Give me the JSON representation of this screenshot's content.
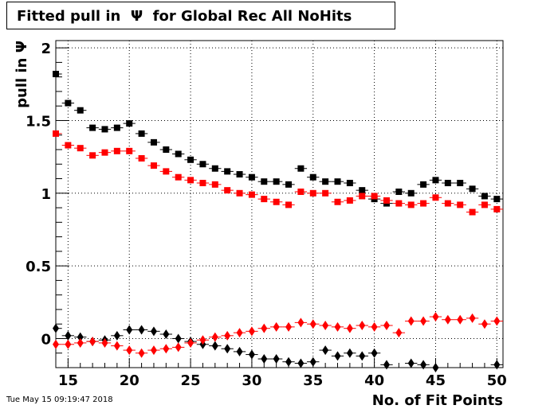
{
  "title": "Fitted pull in  Ψ  for Global Rec All NoHits",
  "footer": "Tue May 15 09:19:47 2018",
  "chart_data": {
    "type": "scatter",
    "title": "Fitted pull in  Ψ  for Global Rec All NoHits",
    "xlabel": "No. of Fit Points",
    "ylabel": "pull in  Ψ",
    "xlim": [
      14,
      50.5
    ],
    "ylim": [
      -0.2,
      2.05
    ],
    "xticks": [
      15,
      20,
      25,
      30,
      35,
      40,
      45,
      50
    ],
    "yticks": [
      0,
      0.5,
      1,
      1.5,
      2
    ],
    "ytick_labels": [
      "0",
      "0.5",
      "1",
      "1.5",
      "2"
    ],
    "grid": true,
    "series": [
      {
        "marker": "square",
        "color": "#000000",
        "x": [
          14,
          15,
          16,
          17,
          18,
          19,
          20,
          21,
          22,
          23,
          24,
          25,
          26,
          27,
          28,
          29,
          30,
          31,
          32,
          33,
          34,
          35,
          36,
          37,
          38,
          39,
          40,
          41,
          42,
          43,
          44,
          45,
          46,
          47,
          48,
          49,
          50
        ],
        "y": [
          1.82,
          1.62,
          1.57,
          1.45,
          1.44,
          1.45,
          1.48,
          1.41,
          1.35,
          1.3,
          1.27,
          1.23,
          1.2,
          1.17,
          1.15,
          1.13,
          1.11,
          1.08,
          1.08,
          1.06,
          1.17,
          1.11,
          1.08,
          1.08,
          1.07,
          1.02,
          0.96,
          0.93,
          1.01,
          1.0,
          1.06,
          1.09,
          1.07,
          1.07,
          1.03,
          0.98,
          0.96
        ]
      },
      {
        "marker": "square",
        "color": "#ff0000",
        "x": [
          14,
          15,
          16,
          17,
          18,
          19,
          20,
          21,
          22,
          23,
          24,
          25,
          26,
          27,
          28,
          29,
          30,
          31,
          32,
          33,
          34,
          35,
          36,
          37,
          38,
          39,
          40,
          41,
          42,
          43,
          44,
          45,
          46,
          47,
          48,
          49,
          50
        ],
        "y": [
          1.41,
          1.33,
          1.31,
          1.26,
          1.28,
          1.29,
          1.29,
          1.24,
          1.19,
          1.15,
          1.11,
          1.09,
          1.07,
          1.06,
          1.02,
          1.0,
          0.99,
          0.96,
          0.94,
          0.92,
          1.01,
          1.0,
          1.0,
          0.94,
          0.95,
          0.98,
          0.98,
          0.95,
          0.93,
          0.92,
          0.93,
          0.97,
          0.93,
          0.92,
          0.87,
          0.92,
          0.89
        ]
      },
      {
        "marker": "diamond",
        "color": "#000000",
        "x": [
          14,
          15,
          16,
          17,
          18,
          19,
          20,
          21,
          22,
          23,
          24,
          25,
          26,
          27,
          28,
          29,
          30,
          31,
          32,
          33,
          34,
          35,
          36,
          37,
          38,
          39,
          40,
          41,
          43,
          44,
          45,
          50
        ],
        "y": [
          0.07,
          0.02,
          0.01,
          -0.02,
          -0.01,
          0.02,
          0.06,
          0.06,
          0.05,
          0.03,
          0.0,
          -0.02,
          -0.04,
          -0.05,
          -0.07,
          -0.09,
          -0.11,
          -0.14,
          -0.14,
          -0.16,
          -0.17,
          -0.16,
          -0.08,
          -0.12,
          -0.1,
          -0.12,
          -0.1,
          -0.18,
          -0.17,
          -0.18,
          -0.2,
          -0.18
        ]
      },
      {
        "marker": "diamond",
        "color": "#ff0000",
        "x": [
          14,
          15,
          16,
          17,
          18,
          19,
          20,
          21,
          22,
          23,
          24,
          25,
          26,
          27,
          28,
          29,
          30,
          31,
          32,
          33,
          34,
          35,
          36,
          37,
          38,
          39,
          40,
          41,
          42,
          43,
          44,
          45,
          46,
          47,
          48,
          49,
          50
        ],
        "y": [
          -0.04,
          -0.04,
          -0.03,
          -0.02,
          -0.03,
          -0.05,
          -0.08,
          -0.1,
          -0.08,
          -0.07,
          -0.06,
          -0.03,
          -0.01,
          0.01,
          0.02,
          0.04,
          0.05,
          0.07,
          0.08,
          0.08,
          0.11,
          0.1,
          0.09,
          0.08,
          0.07,
          0.09,
          0.08,
          0.09,
          0.04,
          0.12,
          0.12,
          0.15,
          0.13,
          0.13,
          0.14,
          0.1,
          0.12
        ]
      }
    ]
  }
}
